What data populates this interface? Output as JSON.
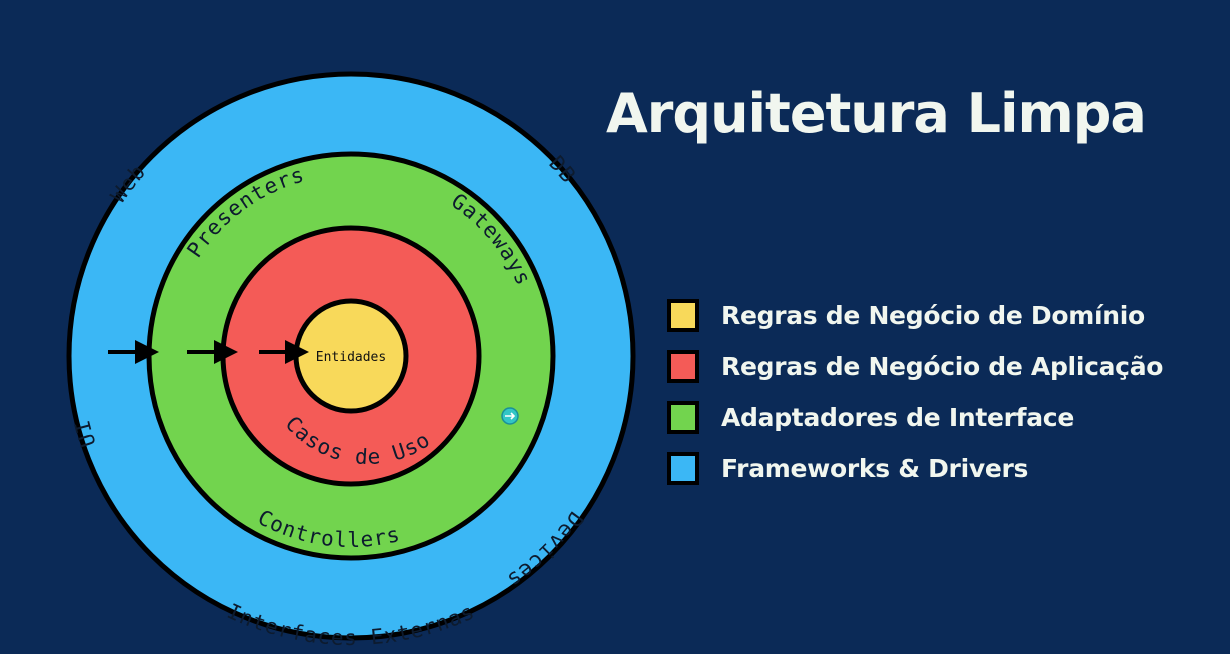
{
  "title": "Arquitetura Limpa",
  "colors": {
    "background": "#0b2a57",
    "frameworks": "#3bb7f5",
    "adapters": "#72d44e",
    "application": "#f45b57",
    "domain": "#f8d95a",
    "ring_border": "#000000",
    "title_text": "#f1f6ef"
  },
  "rings": {
    "outer": {
      "labels": [
        "Web",
        "DB",
        "UI",
        "Devices",
        "Interfaces Externas"
      ]
    },
    "adapters": {
      "labels": [
        "Presenters",
        "Gateways",
        "Controllers"
      ]
    },
    "application": {
      "labels": [
        "Casos de Uso"
      ]
    },
    "core": {
      "label": "Entidades"
    }
  },
  "arrows": [
    {
      "icon": "arrow-right-icon"
    },
    {
      "icon": "arrow-right-icon"
    },
    {
      "icon": "arrow-right-icon"
    }
  ],
  "cursor_icon": "cursor-arrow-icon",
  "legend": [
    {
      "label": "Regras de Negócio de Domínio",
      "color": "#f8d95a"
    },
    {
      "label": "Regras de Negócio de Aplicação",
      "color": "#f45b57"
    },
    {
      "label": "Adaptadores de Interface",
      "color": "#72d44e"
    },
    {
      "label": "Frameworks & Drivers",
      "color": "#3bb7f5"
    }
  ]
}
